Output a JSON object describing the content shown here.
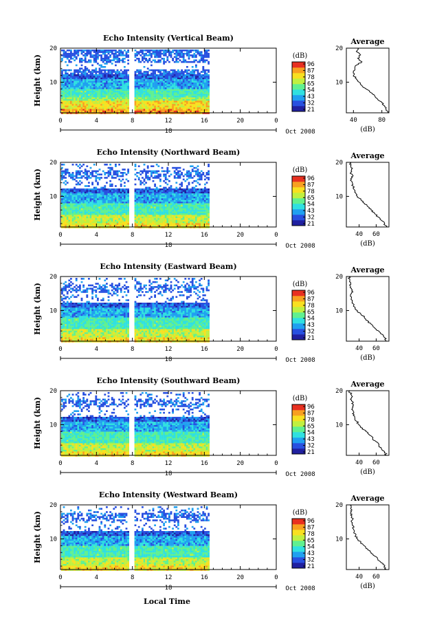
{
  "chart_data": {
    "type": "heatmap",
    "date_label": "Oct 2008",
    "xlabel_bottom": "Local Time",
    "x_ticks": [
      "0",
      "4",
      "8",
      "12",
      "16",
      "20",
      "0"
    ],
    "x_range": [
      0,
      24
    ],
    "day_label": "18",
    "ylabel": "Height (km)",
    "y_ticks": [
      "10",
      "20"
    ],
    "y_range": [
      1,
      20
    ],
    "colorbar": {
      "unit": "(dB)",
      "ticks": [
        "96",
        "87",
        "78",
        "65",
        "54",
        "43",
        "32",
        "21"
      ],
      "colors": [
        "#2020a0",
        "#2850e0",
        "#20a0f0",
        "#30e0e0",
        "#60f090",
        "#c0f040",
        "#f8e020",
        "#f8a020",
        "#e83020"
      ]
    },
    "data_gap_hours": [
      7.7,
      8.1
    ],
    "data_end_hour": 16.5,
    "average_panel": {
      "title": "Average",
      "xlabel": "(dB)",
      "y_ticks": [
        "10",
        "20"
      ]
    },
    "panels": [
      {
        "title": "Echo Intensity (Vertical Beam)",
        "avg_x_ticks": [
          "40",
          "80"
        ],
        "avg_x_range": [
          30,
          90
        ],
        "avg_profile": [
          [
            1,
            88
          ],
          [
            2,
            86
          ],
          [
            3,
            84
          ],
          [
            4,
            80
          ],
          [
            5,
            74
          ],
          [
            6,
            70
          ],
          [
            7,
            64
          ],
          [
            8,
            58
          ],
          [
            9,
            52
          ],
          [
            10,
            48
          ],
          [
            11,
            44
          ],
          [
            12,
            40
          ],
          [
            13,
            40
          ],
          [
            14,
            42
          ],
          [
            15,
            44
          ],
          [
            16,
            52
          ],
          [
            17,
            46
          ],
          [
            18,
            50
          ],
          [
            19,
            44
          ],
          [
            20,
            46
          ]
        ]
      },
      {
        "title": "Echo Intensity (Northward Beam)",
        "avg_x_ticks": [
          "40",
          "60"
        ],
        "avg_x_range": [
          25,
          75
        ],
        "avg_profile": [
          [
            1,
            72
          ],
          [
            2,
            70
          ],
          [
            3,
            66
          ],
          [
            4,
            62
          ],
          [
            5,
            58
          ],
          [
            6,
            54
          ],
          [
            7,
            50
          ],
          [
            8,
            46
          ],
          [
            9,
            42
          ],
          [
            10,
            38
          ],
          [
            11,
            36
          ],
          [
            12,
            34
          ],
          [
            13,
            33
          ],
          [
            14,
            32
          ],
          [
            15,
            31
          ],
          [
            16,
            33
          ],
          [
            17,
            30
          ],
          [
            18,
            31
          ],
          [
            19,
            30
          ],
          [
            20,
            29
          ]
        ]
      },
      {
        "title": "Echo Intensity (Eastward Beam)",
        "avg_x_ticks": [
          "40",
          "60"
        ],
        "avg_x_range": [
          25,
          75
        ],
        "avg_profile": [
          [
            1,
            72
          ],
          [
            2,
            70
          ],
          [
            3,
            67
          ],
          [
            4,
            63
          ],
          [
            5,
            58
          ],
          [
            6,
            54
          ],
          [
            7,
            50
          ],
          [
            8,
            46
          ],
          [
            9,
            42
          ],
          [
            10,
            38
          ],
          [
            11,
            35
          ],
          [
            12,
            33
          ],
          [
            13,
            32
          ],
          [
            14,
            31
          ],
          [
            15,
            31
          ],
          [
            16,
            32
          ],
          [
            17,
            30
          ],
          [
            18,
            30
          ],
          [
            19,
            29
          ],
          [
            20,
            28
          ]
        ]
      },
      {
        "title": "Echo Intensity (Southward Beam)",
        "avg_x_ticks": [
          "40",
          "60"
        ],
        "avg_x_range": [
          25,
          75
        ],
        "avg_profile": [
          [
            1,
            72
          ],
          [
            2,
            70
          ],
          [
            3,
            66
          ],
          [
            4,
            63
          ],
          [
            5,
            60
          ],
          [
            6,
            56
          ],
          [
            7,
            52
          ],
          [
            8,
            48
          ],
          [
            9,
            44
          ],
          [
            10,
            40
          ],
          [
            11,
            37
          ],
          [
            12,
            35
          ],
          [
            13,
            34
          ],
          [
            14,
            33
          ],
          [
            15,
            32
          ],
          [
            16,
            33
          ],
          [
            17,
            31
          ],
          [
            18,
            31
          ],
          [
            19,
            30
          ],
          [
            20,
            29
          ]
        ]
      },
      {
        "title": "Echo Intensity (Westward Beam)",
        "avg_x_ticks": [
          "40",
          "60"
        ],
        "avg_x_range": [
          25,
          75
        ],
        "avg_profile": [
          [
            1,
            72
          ],
          [
            2,
            70
          ],
          [
            3,
            66
          ],
          [
            4,
            62
          ],
          [
            5,
            58
          ],
          [
            6,
            54
          ],
          [
            7,
            50
          ],
          [
            8,
            46
          ],
          [
            9,
            42
          ],
          [
            10,
            38
          ],
          [
            11,
            36
          ],
          [
            12,
            34
          ],
          [
            13,
            33
          ],
          [
            14,
            32
          ],
          [
            15,
            31
          ],
          [
            16,
            33
          ],
          [
            17,
            30
          ],
          [
            18,
            31
          ],
          [
            19,
            30
          ],
          [
            20,
            29
          ]
        ]
      }
    ]
  }
}
